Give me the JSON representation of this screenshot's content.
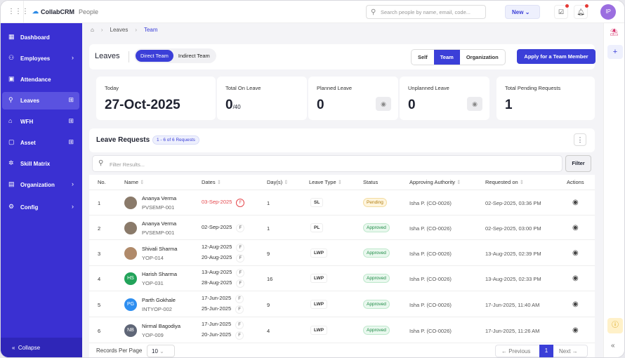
{
  "app": {
    "name": "CollabCRM",
    "module": "People"
  },
  "topbar": {
    "search_placeholder": "Search people by name, email, code...",
    "new_label": "New",
    "avatar_initials": "IP"
  },
  "sidebar": {
    "items": [
      {
        "label": "Dashboard",
        "icon": "grid-icon"
      },
      {
        "label": "Employees",
        "icon": "users-icon",
        "chevron": true
      },
      {
        "label": "Attendance",
        "icon": "calendar-icon"
      },
      {
        "label": "Leaves",
        "icon": "user-plus-icon",
        "plus": true,
        "active": true
      },
      {
        "label": "WFH",
        "icon": "home-icon",
        "plus": true
      },
      {
        "label": "Asset",
        "icon": "box-icon",
        "plus": true
      },
      {
        "label": "Skill Matrix",
        "icon": "skill-icon"
      },
      {
        "label": "Organization",
        "icon": "org-icon",
        "chevron": true
      },
      {
        "label": "Config",
        "icon": "gear-icon",
        "chevron": true
      }
    ],
    "collapse_label": "Collapse"
  },
  "breadcrumb": [
    "Leaves",
    "Team"
  ],
  "header": {
    "title": "Leaves",
    "tabs": [
      "Direct Team",
      "Indirect Team"
    ],
    "active_tab": "Direct Team",
    "scope": [
      "Self",
      "Team",
      "Organization"
    ],
    "active_scope": "Team",
    "apply_label": "Apply for a Team Member"
  },
  "stats": [
    {
      "label": "Today",
      "value": "27-Oct-2025"
    },
    {
      "label": "Total On Leave",
      "value": "0",
      "suffix": "/40"
    },
    {
      "label": "Planned Leave",
      "value": "0"
    },
    {
      "label": "Unplanned Leave",
      "value": "0"
    },
    {
      "label": "Total Pending Requests",
      "value": "1"
    }
  ],
  "requests": {
    "title": "Leave Requests",
    "count_badge": "1 - 6 of 6 Requests",
    "filter_placeholder": "Filter Results...",
    "filter_label": "Filter",
    "columns": [
      "No.",
      "Name",
      "Dates",
      "Day(s)",
      "Leave Type",
      "Status",
      "Approving Authority",
      "Requested on",
      "Actions"
    ],
    "rows": [
      {
        "no": "1",
        "name": "Ananya Verma",
        "code": "PVSEMP-001",
        "avatar": "photo",
        "color": "#8a7a6a",
        "dates": [
          "03-Sep-2025"
        ],
        "days": "1",
        "type": "SL",
        "status": "Pending",
        "approver": "Isha P. (CO-0026)",
        "requested": "02-Sep-2025, 03:36 PM"
      },
      {
        "no": "2",
        "name": "Ananya Verma",
        "code": "PVSEMP-001",
        "avatar": "photo",
        "color": "#8a7a6a",
        "dates": [
          "02-Sep-2025"
        ],
        "days": "1",
        "type": "PL",
        "status": "Approved",
        "approver": "Isha P. (CO-0026)",
        "requested": "02-Sep-2025, 03:00 PM"
      },
      {
        "no": "3",
        "name": "Shivali Sharma",
        "code": "YOP-014",
        "avatar": "photo",
        "color": "#b08a6a",
        "dates": [
          "12-Aug-2025",
          "20-Aug-2025"
        ],
        "days": "9",
        "type": "LWP",
        "status": "Approved",
        "approver": "Isha P. (CO-0026)",
        "requested": "13-Aug-2025, 02:39 PM"
      },
      {
        "no": "4",
        "name": "Harish Sharma",
        "code": "YOP-031",
        "avatar": "HS",
        "color": "#22a35a",
        "dates": [
          "13-Aug-2025",
          "28-Aug-2025"
        ],
        "days": "16",
        "type": "LWP",
        "status": "Approved",
        "approver": "Isha P. (CO-0026)",
        "requested": "13-Aug-2025, 02:33 PM"
      },
      {
        "no": "5",
        "name": "Parth Gokhale",
        "code": "INTYOP-002",
        "avatar": "PG",
        "color": "#2e8ef0",
        "dates": [
          "17-Jun-2025",
          "25-Jun-2025"
        ],
        "days": "9",
        "type": "LWP",
        "status": "Approved",
        "approver": "Isha P. (CO-0026)",
        "requested": "17-Jun-2025, 11:40 AM"
      },
      {
        "no": "6",
        "name": "Nirmal Bagodiya",
        "code": "YOP-009",
        "avatar": "NB",
        "color": "#5f6677",
        "dates": [
          "17-Jun-2025",
          "20-Jun-2025"
        ],
        "days": "4",
        "type": "LWP",
        "status": "Approved",
        "approver": "Isha P. (CO-0026)",
        "requested": "17-Jun-2025, 11:26 AM"
      }
    ]
  },
  "pagination": {
    "records_label": "Records Per Page",
    "per_page": "10",
    "previous": "Previous",
    "page": "1",
    "next": "Next"
  },
  "colors": {
    "primary": "#3b3fd8",
    "sidebar": "#3a30d2",
    "pending": "#b07d10",
    "approved": "#1d8a45",
    "overdue": "#e5484d"
  }
}
